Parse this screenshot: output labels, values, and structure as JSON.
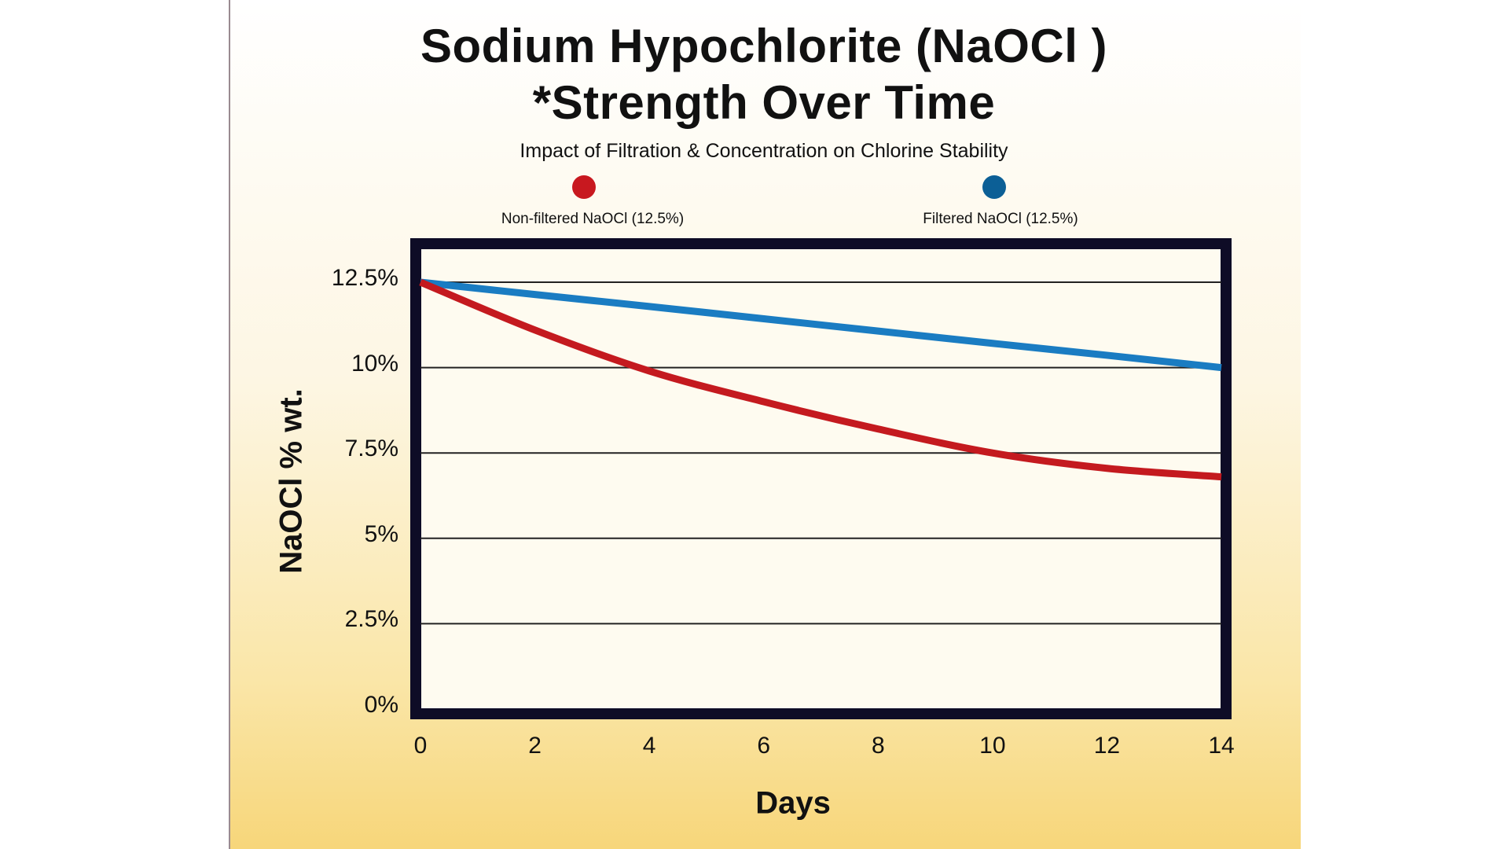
{
  "chart_data": {
    "type": "line",
    "title": "Sodium Hypochlorite (NaOCl )",
    "title_line2": "*Strength Over Time",
    "subtitle": "Impact of Filtration & Concentration on Chlorine Stability",
    "xlabel": "Days",
    "ylabel": "NaOCl % wt.",
    "x": [
      0,
      2,
      4,
      6,
      8,
      10,
      12,
      14
    ],
    "xticks": [
      "0",
      "2",
      "4",
      "6",
      "8",
      "10",
      "12",
      "14"
    ],
    "yticks": [
      "0%",
      "2.5%",
      "5%",
      "7.5%",
      "10%",
      "12.5%"
    ],
    "ytick_values": [
      0,
      2.5,
      5,
      7.5,
      10,
      12.5
    ],
    "xlim": [
      0,
      14
    ],
    "ylim": [
      0,
      12.5
    ],
    "grid": "horizontal",
    "legend_position": "top",
    "series": [
      {
        "name": "Non-filtered NaOCl (12.5%)",
        "color": "#c41a1f",
        "values": [
          12.5,
          11.1,
          9.9,
          9.0,
          8.2,
          7.5,
          7.05,
          6.8
        ]
      },
      {
        "name": "Filtered NaOCl (12.5%)",
        "color": "#1a7cc2",
        "values": [
          12.5,
          12.14,
          11.79,
          11.43,
          11.07,
          10.71,
          10.36,
          10.0
        ]
      }
    ],
    "legend_dot_colors": [
      "#c8181f",
      "#0c5f96"
    ]
  }
}
